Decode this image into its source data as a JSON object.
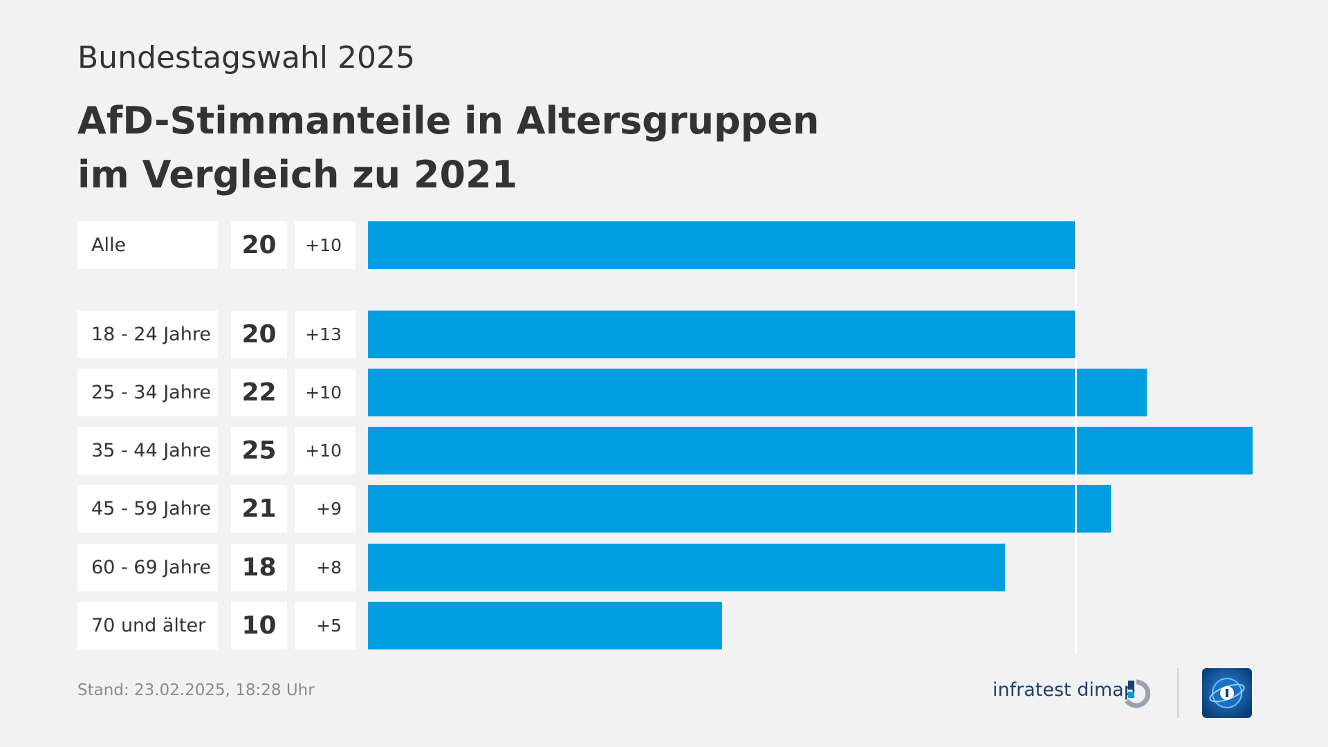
{
  "header": {
    "kicker": "Bundestagswahl 2025",
    "title_line1": "AfD-Stimmanteile in Altersgruppen",
    "title_line2": "im Vergleich zu 2021"
  },
  "footer": {
    "stand": "Stand:  23.02.2025, 18:28 Uhr",
    "brand": "infratest dimap"
  },
  "colors": {
    "bar": "#009ee0",
    "background": "#f2f2f2",
    "brand": "#1d3e6e",
    "logo": "#0b4d8c"
  },
  "icons": {
    "brand_mark": "infratest-dimap-logo-icon",
    "logo": "tagesschau-logo-icon"
  },
  "chart_data": {
    "type": "bar",
    "orientation": "horizontal",
    "categories": [
      "Alle",
      "18 - 24 Jahre",
      "25 - 34 Jahre",
      "35 - 44 Jahre",
      "45 - 59 Jahre",
      "60 - 69 Jahre",
      "70 und älter"
    ],
    "values": [
      20,
      20,
      22,
      25,
      21,
      18,
      10
    ],
    "changes": [
      "+10",
      "+13",
      "+10",
      "+10",
      "+9",
      "+8",
      "+5"
    ],
    "reference_value": 20,
    "title": "AfD-Stimmanteile in Altersgruppen im Vergleich zu 2021",
    "xlim": [
      0,
      25
    ]
  }
}
